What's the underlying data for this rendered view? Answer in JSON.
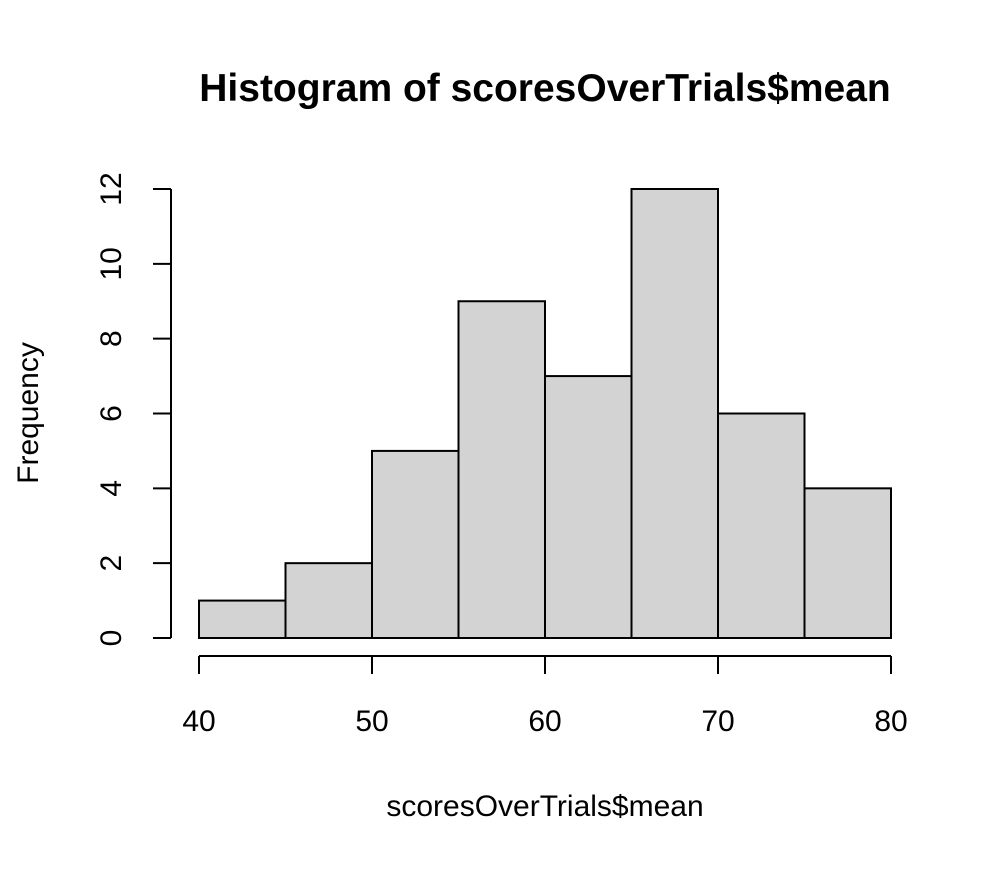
{
  "chart_data": {
    "type": "bar",
    "title": "Histogram of scoresOverTrials$mean",
    "xlabel": "scoresOverTrials$mean",
    "ylabel": "Frequency",
    "bin_edges": [
      40,
      45,
      50,
      55,
      60,
      65,
      70,
      75,
      80
    ],
    "values": [
      1,
      2,
      5,
      9,
      7,
      12,
      6,
      4
    ],
    "xticks": [
      40,
      50,
      60,
      70,
      80
    ],
    "yticks": [
      0,
      2,
      4,
      6,
      8,
      10,
      12
    ],
    "xlim": [
      40,
      80
    ],
    "ylim": [
      0,
      12
    ],
    "grid": false,
    "bar_color": "#d3d3d3",
    "edge_color": "#000000"
  }
}
